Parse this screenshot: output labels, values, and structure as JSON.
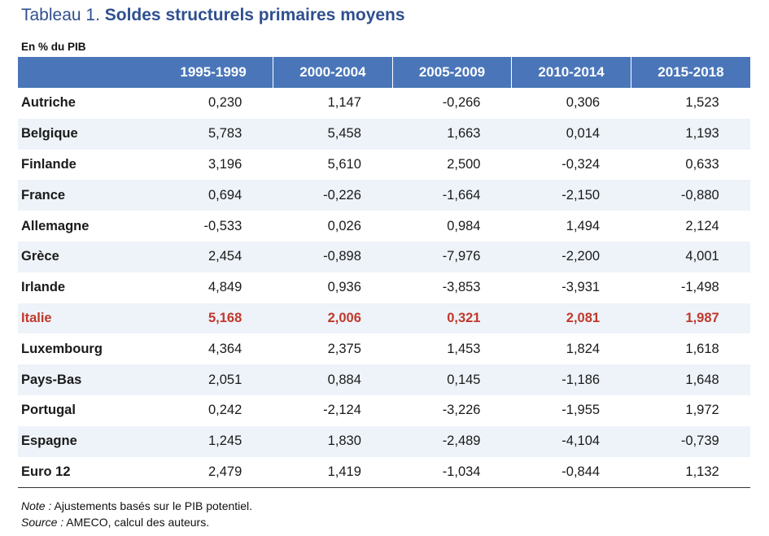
{
  "title": {
    "prefix": "Tableau 1. ",
    "main": "Soldes structurels primaires moyens"
  },
  "unit_label": "En % du PIB",
  "columns": [
    "1995-1999",
    "2000-2004",
    "2005-2009",
    "2010-2014",
    "2015-2018"
  ],
  "rows": [
    {
      "country": "Autriche",
      "values": [
        "0,230",
        "1,147",
        "-0,266",
        "0,306",
        "1,523"
      ]
    },
    {
      "country": "Belgique",
      "values": [
        "5,783",
        "5,458",
        "1,663",
        "0,014",
        "1,193"
      ]
    },
    {
      "country": "Finlande",
      "values": [
        "3,196",
        "5,610",
        "2,500",
        "-0,324",
        "0,633"
      ]
    },
    {
      "country": "France",
      "values": [
        "0,694",
        "-0,226",
        "-1,664",
        "-2,150",
        "-0,880"
      ]
    },
    {
      "country": "Allemagne",
      "values": [
        "-0,533",
        "0,026",
        "0,984",
        "1,494",
        "2,124"
      ]
    },
    {
      "country": "Grèce",
      "values": [
        "2,454",
        "-0,898",
        "-7,976",
        "-2,200",
        "4,001"
      ]
    },
    {
      "country": "Irlande",
      "values": [
        "4,849",
        "0,936",
        "-3,853",
        "-3,931",
        "-1,498"
      ]
    },
    {
      "country": "Italie",
      "values": [
        "5,168",
        "2,006",
        "0,321",
        "2,081",
        "1,987"
      ],
      "highlight": true
    },
    {
      "country": "Luxembourg",
      "values": [
        "4,364",
        "2,375",
        "1,453",
        "1,824",
        "1,618"
      ]
    },
    {
      "country": "Pays-Bas",
      "values": [
        "2,051",
        "0,884",
        "0,145",
        "-1,186",
        "1,648"
      ]
    },
    {
      "country": "Portugal",
      "values": [
        "0,242",
        "-2,124",
        "-3,226",
        "-1,955",
        "1,972"
      ]
    },
    {
      "country": "Espagne",
      "values": [
        "1,245",
        "1,830",
        "-2,489",
        "-4,104",
        "-0,739"
      ]
    },
    {
      "country": "Euro 12",
      "values": [
        "2,479",
        "1,419",
        "-1,034",
        "-0,844",
        "1,132"
      ]
    }
  ],
  "notes": {
    "note_label": "Note :",
    "note_text": " Ajustements basés sur le PIB potentiel.",
    "source_label": "Source :",
    "source_text": " AMECO, calcul des auteurs."
  },
  "colors": {
    "header_bg": "#4a76b9",
    "title": "#2f4f8f",
    "highlight_text": "#c0392b",
    "alt_row_bg": "#eef3f9"
  }
}
